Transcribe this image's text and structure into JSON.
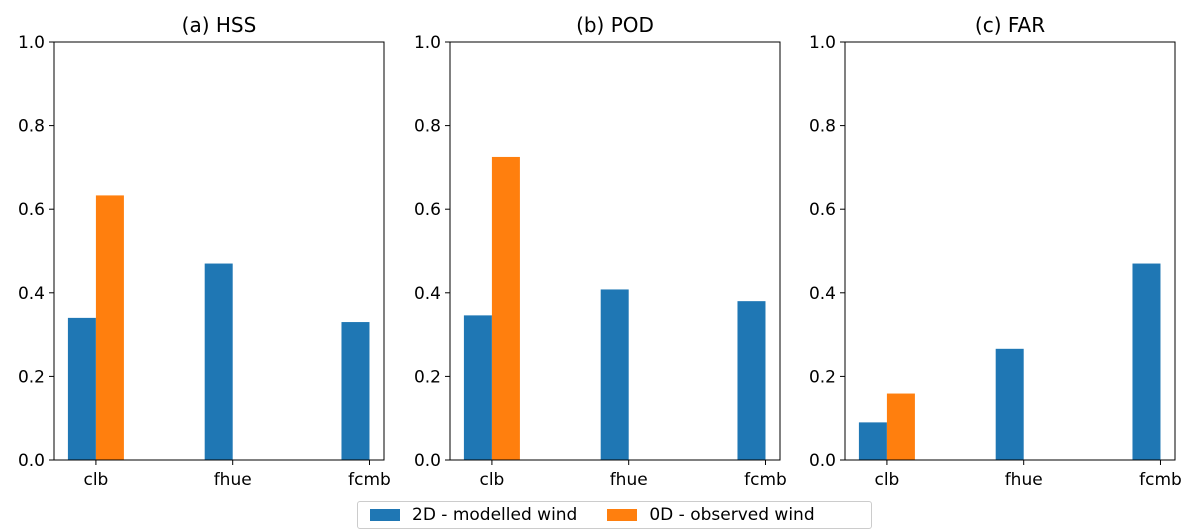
{
  "colors": {
    "series_2d": "#1f77b4",
    "series_0d": "#ff7f0e"
  },
  "legend": {
    "items": [
      {
        "label": "2D - modelled wind",
        "color": "#1f77b4"
      },
      {
        "label": "0D - observed wind",
        "color": "#ff7f0e"
      }
    ],
    "placement": "bottom-center"
  },
  "chart_data": [
    {
      "type": "bar",
      "title": "(a) HSS",
      "categories": [
        "clb",
        "fhue",
        "fcmb"
      ],
      "ylim": [
        0,
        1.0
      ],
      "yticks": [
        "0.0",
        "0.2",
        "0.4",
        "0.6",
        "0.8",
        "1.0"
      ],
      "series": [
        {
          "name": "2D - modelled wind",
          "values": [
            0.34,
            0.47,
            0.33
          ]
        },
        {
          "name": "0D - observed wind",
          "values": [
            0.633,
            null,
            null
          ]
        }
      ]
    },
    {
      "type": "bar",
      "title": "(b) POD",
      "categories": [
        "clb",
        "fhue",
        "fcmb"
      ],
      "ylim": [
        0,
        1.0
      ],
      "yticks": [
        "0.0",
        "0.2",
        "0.4",
        "0.6",
        "0.8",
        "1.0"
      ],
      "series": [
        {
          "name": "2D - modelled wind",
          "values": [
            0.346,
            0.408,
            0.38
          ]
        },
        {
          "name": "0D - observed wind",
          "values": [
            0.725,
            null,
            null
          ]
        }
      ]
    },
    {
      "type": "bar",
      "title": "(c) FAR",
      "categories": [
        "clb",
        "fhue",
        "fcmb"
      ],
      "ylim": [
        0,
        1.0
      ],
      "yticks": [
        "0.0",
        "0.2",
        "0.4",
        "0.6",
        "0.8",
        "1.0"
      ],
      "series": [
        {
          "name": "2D - modelled wind",
          "values": [
            0.09,
            0.266,
            0.47
          ]
        },
        {
          "name": "0D - observed wind",
          "values": [
            0.159,
            null,
            null
          ]
        }
      ]
    }
  ]
}
